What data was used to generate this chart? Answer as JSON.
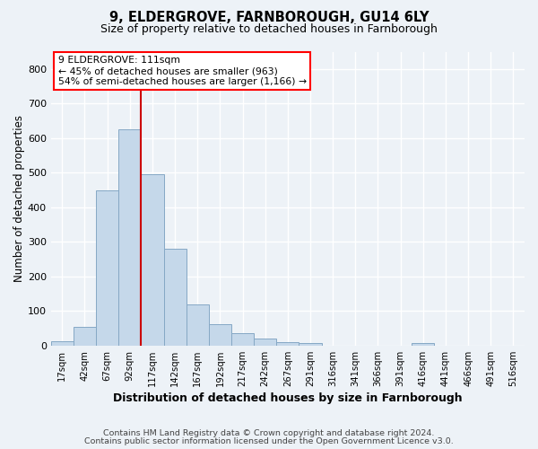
{
  "title_line1": "9, ELDERGROVE, FARNBOROUGH, GU14 6LY",
  "title_line2": "Size of property relative to detached houses in Farnborough",
  "xlabel": "Distribution of detached houses by size in Farnborough",
  "ylabel": "Number of detached properties",
  "bar_labels": [
    "17sqm",
    "42sqm",
    "67sqm",
    "92sqm",
    "117sqm",
    "142sqm",
    "167sqm",
    "192sqm",
    "217sqm",
    "242sqm",
    "267sqm",
    "291sqm",
    "316sqm",
    "341sqm",
    "366sqm",
    "391sqm",
    "416sqm",
    "441sqm",
    "466sqm",
    "491sqm",
    "516sqm"
  ],
  "bar_values": [
    12,
    55,
    450,
    625,
    495,
    280,
    118,
    63,
    35,
    20,
    10,
    8,
    0,
    0,
    0,
    0,
    8,
    0,
    0,
    0,
    0
  ],
  "bar_color": "#c5d8ea",
  "bar_edgecolor": "#85a8c5",
  "vline_position": 3.5,
  "vline_color": "#cc0000",
  "annotation_text": "9 ELDERGROVE: 111sqm\n← 45% of detached houses are smaller (963)\n54% of semi-detached houses are larger (1,166) →",
  "ylim": [
    0,
    850
  ],
  "yticks": [
    0,
    100,
    200,
    300,
    400,
    500,
    600,
    700,
    800
  ],
  "footer_line1": "Contains HM Land Registry data © Crown copyright and database right 2024.",
  "footer_line2": "Contains public sector information licensed under the Open Government Licence v3.0.",
  "bg_color": "#edf2f7",
  "grid_color": "#ffffff",
  "title1_fontsize": 10.5,
  "title2_fontsize": 9,
  "xlabel_fontsize": 9,
  "ylabel_fontsize": 8.5,
  "footer_fontsize": 6.8,
  "annotation_fontsize": 7.8
}
